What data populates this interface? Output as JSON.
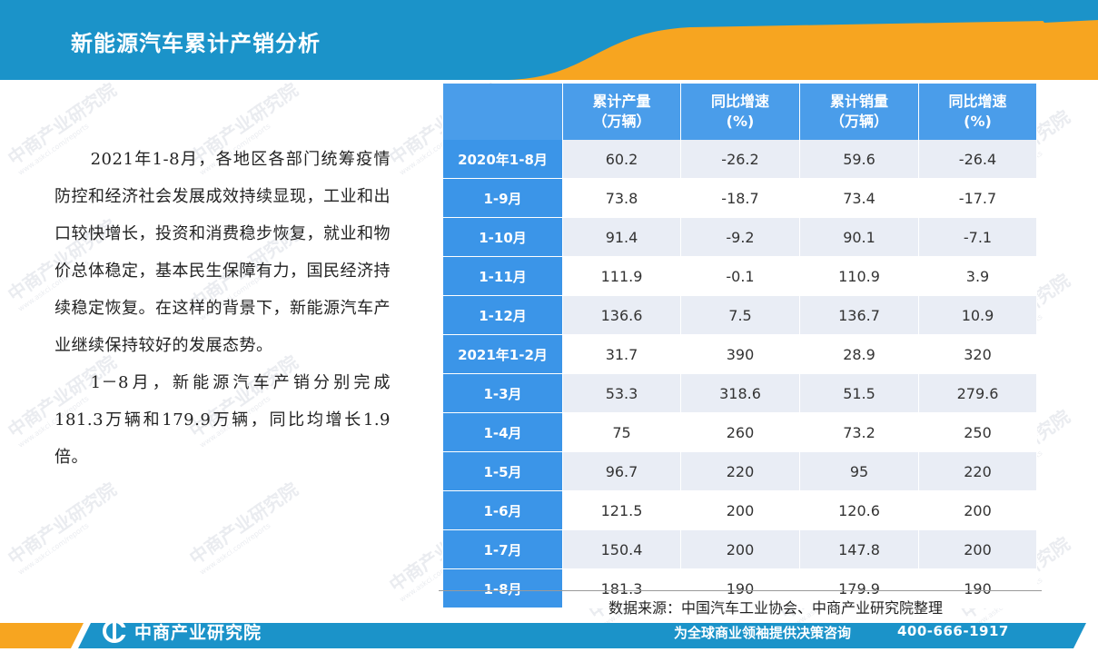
{
  "header": {
    "title": "新能源汽车累计产销分析"
  },
  "paragraphs": [
    "2021年1-8月，各地区各部门统筹疫情防控和经济社会发展成效持续显现，工业和出口较快增长，投资和消费稳步恢复，就业和物价总体稳定，基本民生保障有力，国民经济持续稳定恢复。在这样的背景下，新能源汽车产业继续保持较好的发展态势。",
    "1－8月，新能源汽车产销分别完成181.3万辆和179.9万辆，同比均增长1.9倍。"
  ],
  "table": {
    "headers": [
      {
        "line1": "",
        "line2": ""
      },
      {
        "line1": "累计产量",
        "line2": "（万辆）"
      },
      {
        "line1": "同比增速",
        "line2": "(%)"
      },
      {
        "line1": "累计销量",
        "line2": "（万辆）"
      },
      {
        "line1": "同比增速",
        "line2": "(%)"
      }
    ],
    "rows": [
      {
        "period": "2020年1-8月",
        "production": "60.2",
        "prod_growth": "-26.2",
        "sales": "59.6",
        "sales_growth": "-26.4"
      },
      {
        "period": "1-9月",
        "production": "73.8",
        "prod_growth": "-18.7",
        "sales": "73.4",
        "sales_growth": "-17.7"
      },
      {
        "period": "1-10月",
        "production": "91.4",
        "prod_growth": "-9.2",
        "sales": "90.1",
        "sales_growth": "-7.1"
      },
      {
        "period": "1-11月",
        "production": "111.9",
        "prod_growth": "-0.1",
        "sales": "110.9",
        "sales_growth": "3.9"
      },
      {
        "period": "1-12月",
        "production": "136.6",
        "prod_growth": "7.5",
        "sales": "136.7",
        "sales_growth": "10.9"
      },
      {
        "period": "2021年1-2月",
        "production": "31.7",
        "prod_growth": "390",
        "sales": "28.9",
        "sales_growth": "320"
      },
      {
        "period": "1-3月",
        "production": "53.3",
        "prod_growth": "318.6",
        "sales": "51.5",
        "sales_growth": "279.6"
      },
      {
        "period": "1-4月",
        "production": "75",
        "prod_growth": "260",
        "sales": "73.2",
        "sales_growth": "250"
      },
      {
        "period": "1-5月",
        "production": "96.7",
        "prod_growth": "220",
        "sales": "95",
        "sales_growth": "220"
      },
      {
        "period": "1-6月",
        "production": "121.5",
        "prod_growth": "200",
        "sales": "120.6",
        "sales_growth": "200"
      },
      {
        "period": "1-7月",
        "production": "150.4",
        "prod_growth": "200",
        "sales": "147.8",
        "sales_growth": "200"
      },
      {
        "period": "1-8月",
        "production": "181.3",
        "prod_growth": "190",
        "sales": "179.9",
        "sales_growth": "190"
      }
    ]
  },
  "source": "数据来源：中国汽车工业协会、中商产业研究院整理",
  "footer": {
    "logo_text": "中商产业研究院",
    "logo_icon": "zhongshang-logo-icon",
    "slogan": "为全球商业领袖提供决策咨询",
    "phone": "400-666-1917"
  },
  "watermark": {
    "text": "中商产业研究院",
    "subtext": "www.askci.com/reports"
  },
  "colors": {
    "header_blue": "#1b93c9",
    "accent_orange": "#f7a520",
    "table_header": "#4a9dea",
    "row_header": "#3b95e8",
    "row_stripe": "#e9edf5"
  }
}
